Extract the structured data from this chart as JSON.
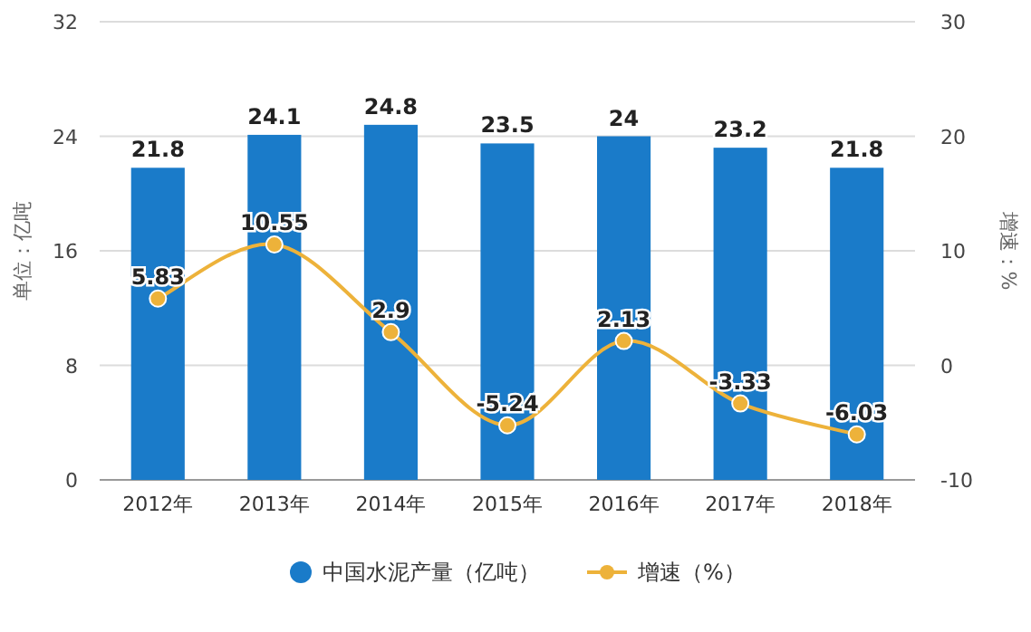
{
  "chart_data": {
    "type": "bar",
    "categories": [
      "2012年",
      "2013年",
      "2014年",
      "2015年",
      "2016年",
      "2017年",
      "2018年"
    ],
    "ylabel": "单位：亿吨",
    "y2label": "增速：%",
    "ylim": [
      0,
      32
    ],
    "yticks": [
      0,
      8,
      16,
      24,
      32
    ],
    "y2lim": [
      -10,
      30
    ],
    "y2ticks": [
      -10,
      0,
      10,
      20,
      30
    ],
    "grid": "y",
    "legend": "bottom",
    "data_labels": true,
    "series": [
      {
        "name": "中国水泥产量（亿吨）",
        "color": "#1a7bc9",
        "values": [
          21.8,
          24.1,
          24.8,
          23.5,
          24,
          23.2,
          21.8
        ]
      },
      {
        "name": "增速（%）",
        "type": "line",
        "axis": "y2",
        "color": "#edb23a",
        "marker": "circle",
        "values": [
          5.83,
          10.55,
          2.9,
          -5.24,
          2.13,
          -3.33,
          -6.03
        ]
      }
    ]
  }
}
